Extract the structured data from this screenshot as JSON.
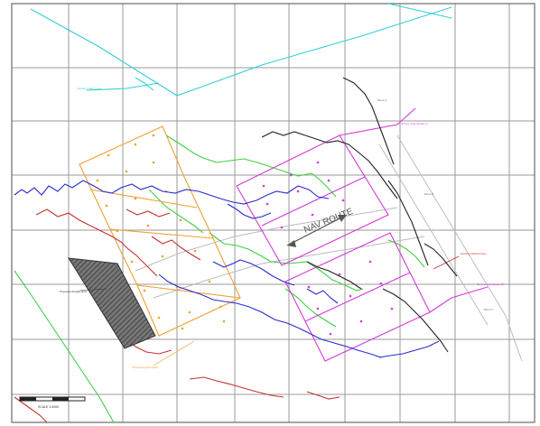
{
  "map": {
    "route_label": "NAV ROUTE",
    "scale_label": "SCALE 1:5000",
    "annotations": [
      "Existing cable route (proposed)",
      "Borehole location",
      "Proposed dredge area",
      "Block A",
      "Block B",
      "Block C",
      "Survey area (phase 1)",
      "Survey area (phase 2)",
      "Existing infrastructure",
      "Proposed grid location"
    ],
    "colors": {
      "grid": "#9a9a9a",
      "frame": "#6a6a6a",
      "cyan": "#33cfd6",
      "orange": "#f0a030",
      "magenta": "#d33ad8",
      "green": "#3fcf3f",
      "blue": "#2b2bd0",
      "red": "#c83030",
      "black": "#222222",
      "hatch": "#555555",
      "gray": "#b8b8b8"
    }
  }
}
